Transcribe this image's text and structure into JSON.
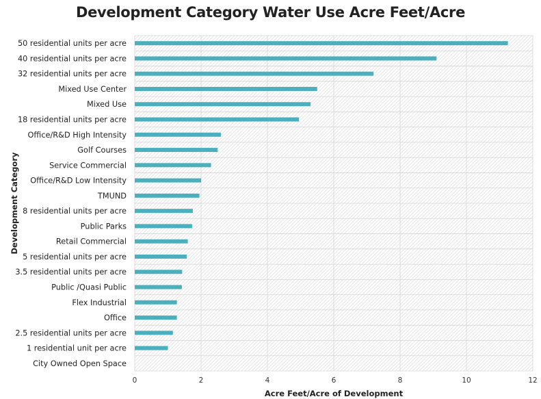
{
  "chart_data": {
    "type": "bar",
    "orientation": "horizontal",
    "title": "Development Category Water Use Acre Feet/Acre",
    "xlabel": "Acre Feet/Acre of Development",
    "ylabel": "Development Category",
    "xlim": [
      0,
      12
    ],
    "xticks": [
      0,
      2,
      4,
      6,
      8,
      10,
      12
    ],
    "grid": true,
    "bar_color": "#4bafbd",
    "categories": [
      "50 residential units per acre",
      "40 residential units per acre",
      "32 residential units per acre",
      "Mixed Use Center",
      "Mixed Use",
      "18 residential units per acre",
      "Office/R&D High Intensity",
      "Golf Courses",
      "Service Commercial",
      "Office/R&D Low Intensity",
      "TMUND",
      "8 residential units per acre",
      "Public Parks",
      "Retail Commercial",
      "5 residential units per acre",
      "3.5 residential units per acre",
      "Public /Quasi Public",
      "Flex Industrial",
      "Office",
      "2.5 residential units per acre",
      "1 residential unit per acre",
      "City Owned Open Space"
    ],
    "values": [
      11.25,
      9.1,
      7.2,
      5.5,
      5.3,
      4.95,
      2.6,
      2.5,
      2.3,
      2.0,
      1.95,
      1.75,
      1.73,
      1.6,
      1.57,
      1.43,
      1.42,
      1.27,
      1.27,
      1.15,
      1.0,
      0
    ]
  }
}
